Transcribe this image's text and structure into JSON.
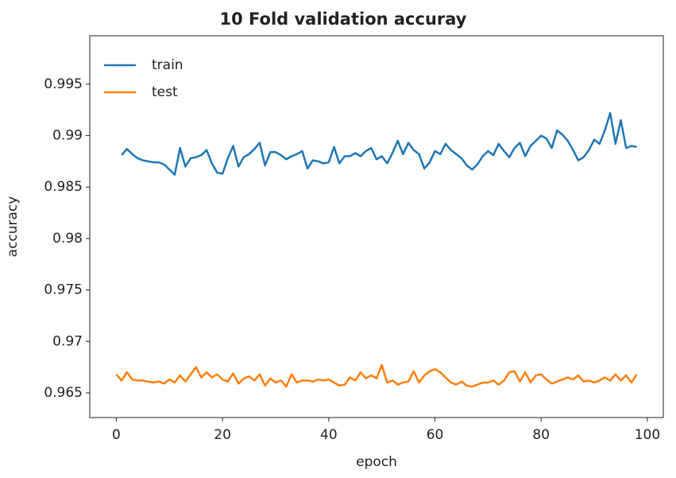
{
  "chart_data": {
    "type": "line",
    "title": "10 Fold validation accuray",
    "xlabel": "epoch",
    "ylabel": "accuracy",
    "x": [
      0,
      1,
      2,
      3,
      4,
      5,
      6,
      7,
      8,
      9,
      10,
      11,
      12,
      13,
      14,
      15,
      16,
      17,
      18,
      19,
      20,
      21,
      22,
      23,
      24,
      25,
      26,
      27,
      28,
      29,
      30,
      31,
      32,
      33,
      34,
      35,
      36,
      37,
      38,
      39,
      40,
      41,
      42,
      43,
      44,
      45,
      46,
      47,
      48,
      49,
      50,
      51,
      52,
      53,
      54,
      55,
      56,
      57,
      58,
      59,
      60,
      61,
      62,
      63,
      64,
      65,
      66,
      67,
      68,
      69,
      70,
      71,
      72,
      73,
      74,
      75,
      76,
      77,
      78,
      79,
      80,
      81,
      82,
      83,
      84,
      85,
      86,
      87,
      88,
      89,
      90,
      91,
      92,
      93,
      94,
      95,
      96,
      97,
      98
    ],
    "series": [
      {
        "name": "train",
        "color": "#1f77b4",
        "values": [
          null,
          0.9881,
          0.9887,
          0.9882,
          0.9878,
          0.9876,
          0.9875,
          0.9874,
          0.9874,
          0.9872,
          0.9867,
          0.9862,
          0.9888,
          0.987,
          0.9878,
          0.9879,
          0.9881,
          0.9886,
          0.9873,
          0.9864,
          0.9863,
          0.9878,
          0.989,
          0.987,
          0.9879,
          0.9882,
          0.9887,
          0.9893,
          0.9871,
          0.9884,
          0.9884,
          0.9881,
          0.9877,
          0.988,
          0.9882,
          0.9885,
          0.9868,
          0.9876,
          0.9875,
          0.9873,
          0.9874,
          0.9889,
          0.9873,
          0.988,
          0.988,
          0.9883,
          0.988,
          0.9885,
          0.9888,
          0.9877,
          0.988,
          0.9873,
          0.9883,
          0.9895,
          0.9882,
          0.9893,
          0.9886,
          0.9882,
          0.9868,
          0.9874,
          0.9885,
          0.9882,
          0.9892,
          0.9886,
          0.9882,
          0.9878,
          0.9871,
          0.9867,
          0.9872,
          0.988,
          0.9885,
          0.9881,
          0.9892,
          0.9885,
          0.9879,
          0.9888,
          0.9893,
          0.988,
          0.989,
          0.9895,
          0.99,
          0.9897,
          0.9888,
          0.9905,
          0.9901,
          0.9895,
          0.9886,
          0.9876,
          0.9879,
          0.9886,
          0.9896,
          0.9892,
          0.9905,
          0.9922,
          0.9892,
          0.9915,
          0.9888,
          0.989,
          0.9889
        ]
      },
      {
        "name": "test",
        "color": "#ff7f0e",
        "values": [
          0.9668,
          0.9662,
          0.967,
          0.9663,
          0.9662,
          0.9662,
          0.9661,
          0.966,
          0.9661,
          0.9659,
          0.9663,
          0.966,
          0.9667,
          0.9661,
          0.9668,
          0.9675,
          0.9665,
          0.967,
          0.9665,
          0.9668,
          0.9663,
          0.9661,
          0.9669,
          0.9659,
          0.9664,
          0.9666,
          0.9662,
          0.9668,
          0.9657,
          0.9664,
          0.966,
          0.9662,
          0.9656,
          0.9668,
          0.966,
          0.9662,
          0.9662,
          0.9661,
          0.9663,
          0.9662,
          0.9663,
          0.966,
          0.9657,
          0.9658,
          0.9665,
          0.9662,
          0.967,
          0.9664,
          0.9667,
          0.9664,
          0.9677,
          0.966,
          0.9662,
          0.9658,
          0.966,
          0.9661,
          0.9671,
          0.966,
          0.9667,
          0.9671,
          0.9673,
          0.967,
          0.9665,
          0.966,
          0.9658,
          0.9661,
          0.9657,
          0.9656,
          0.9658,
          0.966,
          0.966,
          0.9662,
          0.9658,
          0.9662,
          0.967,
          0.9671,
          0.9661,
          0.967,
          0.966,
          0.9667,
          0.9668,
          0.9663,
          0.9659,
          0.9661,
          0.9663,
          0.9665,
          0.9663,
          0.9667,
          0.9661,
          0.9662,
          0.966,
          0.9662,
          0.9665,
          0.9662,
          0.9668,
          0.9662,
          0.9667,
          0.966,
          0.9668
        ]
      }
    ],
    "xlim": [
      -5,
      103
    ],
    "xticks": [
      0,
      20,
      40,
      60,
      80,
      100
    ],
    "ylim": [
      0.9626,
      0.9997
    ],
    "yticks": [
      0.965,
      0.97,
      0.975,
      0.98,
      0.985,
      0.99,
      0.995
    ],
    "legend": "upper left",
    "grid": false
  }
}
